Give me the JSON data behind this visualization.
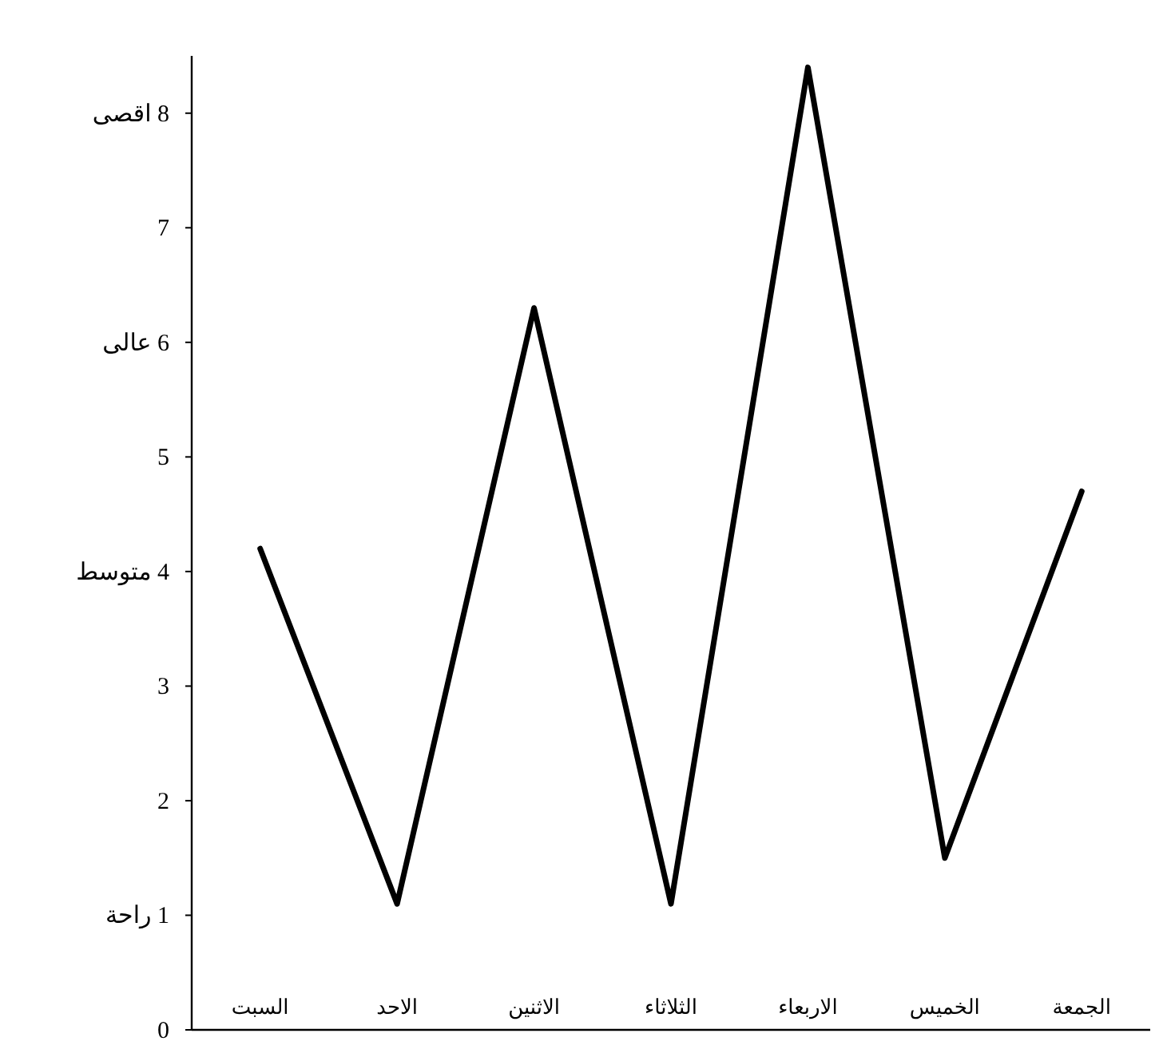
{
  "chart_data": {
    "type": "line",
    "categories": [
      "السبت",
      "الاحد",
      "الاثنين",
      "الثلاثاء",
      "الاربعاء",
      "الخميس",
      "الجمعة"
    ],
    "series": [
      {
        "color": "#000000",
        "values": [
          4.2,
          1.1,
          6.3,
          1.1,
          8.4,
          1.5,
          4.7
        ]
      }
    ],
    "ylim": [
      0,
      8.5
    ],
    "yticks": [
      0,
      {
        "value": 1,
        "label": "1 راحة"
      },
      2,
      3,
      {
        "value": 4,
        "label": "4 متوسط"
      },
      5,
      {
        "value": 6,
        "label": "6 عالى"
      },
      7,
      {
        "value": 8,
        "label": "8 اقصى"
      }
    ],
    "marker": "none",
    "line_style": "solid"
  }
}
